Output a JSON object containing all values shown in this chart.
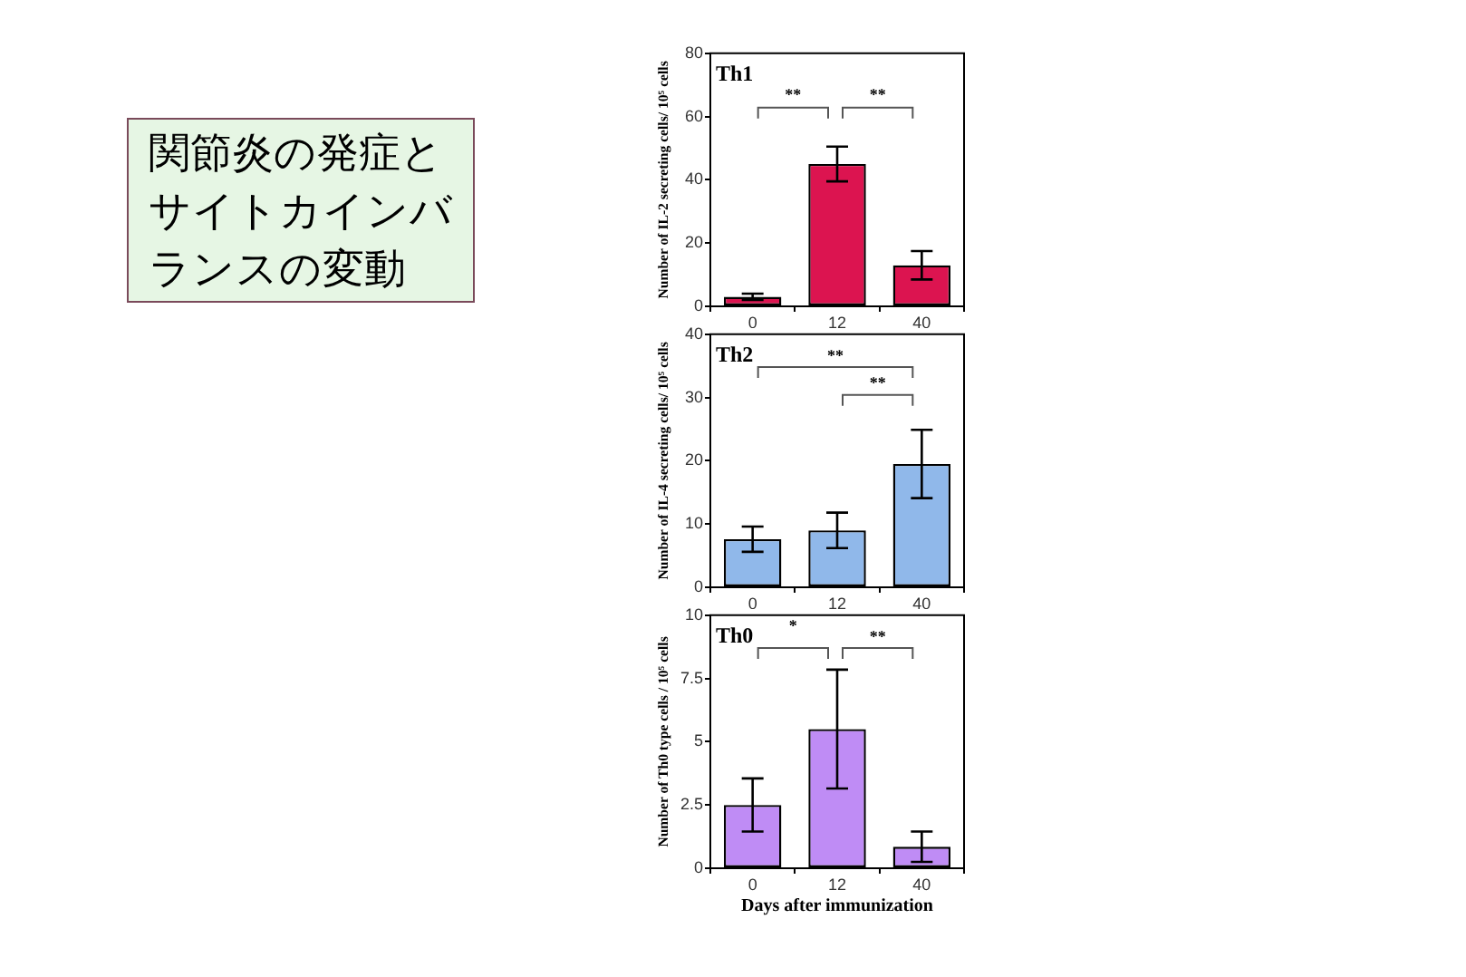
{
  "chart_data": [
    {
      "type": "other",
      "title": "関節炎の発症とサイトカインバランスの変動"
    },
    {
      "type": "bar",
      "title": "Th1",
      "categories": [
        "0",
        "12",
        "40"
      ],
      "values": [
        3,
        45,
        13
      ],
      "errors": [
        1,
        5.5,
        4.5
      ],
      "color": "#dc1450",
      "ylim": [
        0,
        80
      ],
      "yticks": [
        0,
        20,
        40,
        60,
        80
      ],
      "ylabel": "Number of IL-2 secreting cells/ 10⁵ cells",
      "annotations": [
        "**",
        "**"
      ]
    },
    {
      "type": "bar",
      "title": "Th2",
      "categories": [
        "0",
        "12",
        "40"
      ],
      "values": [
        7.6,
        9,
        19.5
      ],
      "errors": [
        2,
        2.8,
        5.4
      ],
      "color": "#90b8ea",
      "ylim": [
        0,
        40
      ],
      "yticks": [
        0,
        10,
        20,
        30,
        40
      ],
      "ylabel": "Number of IL-4 secreting cells/ 10⁵ cells",
      "annotations": [
        "**",
        "**"
      ]
    },
    {
      "type": "bar",
      "title": "Th0",
      "categories": [
        "0",
        "12",
        "40"
      ],
      "values": [
        2.5,
        5.5,
        0.85
      ],
      "errors": [
        1.05,
        2.35,
        0.6
      ],
      "color": "#bf8cf5",
      "ylim": [
        0,
        10
      ],
      "yticks": [
        0,
        2.5,
        5,
        7.5,
        10
      ],
      "ylabel": "Number of Th0 type cells / 10⁵ cells",
      "xlabel": "Days after immunization",
      "annotations": [
        "*",
        "**"
      ]
    }
  ]
}
